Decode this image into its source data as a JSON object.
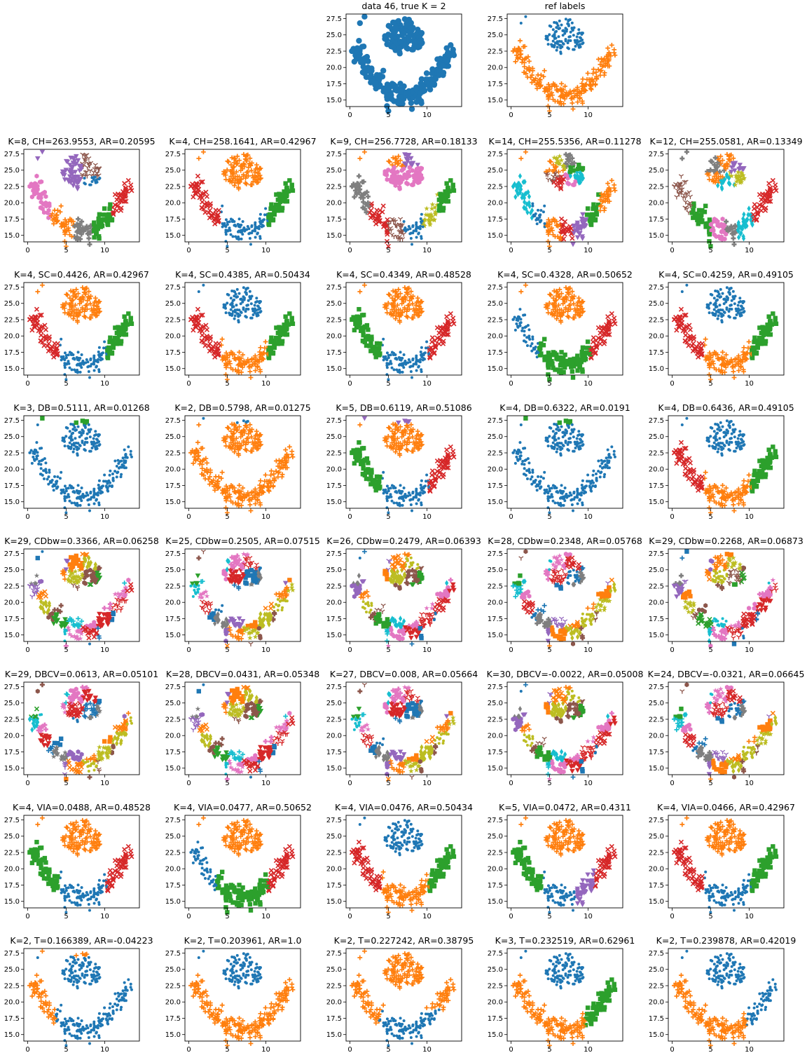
{
  "figure": {
    "rows": 8,
    "cols": 5
  },
  "palette": [
    "#1f77b4",
    "#ff7f0e",
    "#2ca02c",
    "#d62728",
    "#9467bd",
    "#8c564b",
    "#e377c2",
    "#7f7f7f",
    "#bcbd22",
    "#17becf"
  ],
  "markers": [
    "dot",
    "plus",
    "square",
    "x",
    "tri-down",
    "tri-narrow",
    "hexagon",
    "cross",
    "star",
    "diamond"
  ],
  "axes": {
    "xlim": [
      -0.5,
      14.5
    ],
    "ylim": [
      14,
      28.2
    ],
    "xticks": [
      "0",
      "5",
      "10"
    ],
    "xtick_values": [
      0,
      5,
      10
    ],
    "yticks": [
      "15.0",
      "17.5",
      "20.0",
      "22.5",
      "25.0",
      "27.5"
    ],
    "ytick_values": [
      15,
      17.5,
      20,
      22.5,
      25,
      27.5
    ]
  },
  "chart_data": [
    {
      "type": "scatter",
      "title": "data 46, true K = 2",
      "pos": [
        0,
        2
      ],
      "coloring": "single"
    },
    {
      "type": "scatter",
      "title": "ref labels",
      "pos": [
        0,
        3
      ],
      "coloring": "ref"
    },
    {
      "type": "scatter",
      "title": "K=8, CH=263.9553, AR=0.20595",
      "pos": [
        1,
        0
      ],
      "coloring": "k8"
    },
    {
      "type": "scatter",
      "title": "K=4, CH=258.1641, AR=0.42967",
      "pos": [
        1,
        1
      ],
      "coloring": "k4a"
    },
    {
      "type": "scatter",
      "title": "K=9, CH=256.7728, AR=0.18133",
      "pos": [
        1,
        2
      ],
      "coloring": "k9"
    },
    {
      "type": "scatter",
      "title": "K=14, CH=255.5356, AR=0.11278",
      "pos": [
        1,
        3
      ],
      "coloring": "k14"
    },
    {
      "type": "scatter",
      "title": "K=12, CH=255.0581, AR=0.13349",
      "pos": [
        1,
        4
      ],
      "coloring": "k12"
    },
    {
      "type": "scatter",
      "title": "K=4, SC=0.4426, AR=0.42967",
      "pos": [
        2,
        0
      ],
      "coloring": "k4a"
    },
    {
      "type": "scatter",
      "title": "K=4, SC=0.4385, AR=0.50434",
      "pos": [
        2,
        1
      ],
      "coloring": "k4b"
    },
    {
      "type": "scatter",
      "title": "K=4, SC=0.4349, AR=0.48528",
      "pos": [
        2,
        2
      ],
      "coloring": "k4c"
    },
    {
      "type": "scatter",
      "title": "K=4, SC=0.4328, AR=0.50652",
      "pos": [
        2,
        3
      ],
      "coloring": "k4d"
    },
    {
      "type": "scatter",
      "title": "K=4, SC=0.4259, AR=0.49105",
      "pos": [
        2,
        4
      ],
      "coloring": "k4e"
    },
    {
      "type": "scatter",
      "title": "K=3, DB=0.5111, AR=0.01268",
      "pos": [
        3,
        0
      ],
      "coloring": "db3"
    },
    {
      "type": "scatter",
      "title": "K=2, DB=0.5798, AR=0.01275",
      "pos": [
        3,
        1
      ],
      "coloring": "db2"
    },
    {
      "type": "scatter",
      "title": "K=5, DB=0.6119, AR=0.51086",
      "pos": [
        3,
        2
      ],
      "coloring": "db5"
    },
    {
      "type": "scatter",
      "title": "K=4, DB=0.6322, AR=0.0191",
      "pos": [
        3,
        3
      ],
      "coloring": "db4"
    },
    {
      "type": "scatter",
      "title": "K=4, DB=0.6436, AR=0.49105",
      "pos": [
        3,
        4
      ],
      "coloring": "k4e"
    },
    {
      "type": "scatter",
      "title": "K=29, CDbw=0.3366, AR=0.06258",
      "pos": [
        4,
        0
      ],
      "coloring": "many1"
    },
    {
      "type": "scatter",
      "title": "K=25, CDbw=0.2505, AR=0.07515",
      "pos": [
        4,
        1
      ],
      "coloring": "many2"
    },
    {
      "type": "scatter",
      "title": "K=26, CDbw=0.2479, AR=0.06393",
      "pos": [
        4,
        2
      ],
      "coloring": "many3"
    },
    {
      "type": "scatter",
      "title": "K=28, CDbw=0.2348, AR=0.05768",
      "pos": [
        4,
        3
      ],
      "coloring": "many4"
    },
    {
      "type": "scatter",
      "title": "K=29, CDbw=0.2268, AR=0.06873",
      "pos": [
        4,
        4
      ],
      "coloring": "many5"
    },
    {
      "type": "scatter",
      "title": "K=29, DBCV=0.0613, AR=0.05101",
      "pos": [
        5,
        0
      ],
      "coloring": "many6"
    },
    {
      "type": "scatter",
      "title": "K=28, DBCV=0.0431, AR=0.05348",
      "pos": [
        5,
        1
      ],
      "coloring": "many7"
    },
    {
      "type": "scatter",
      "title": "K=27, DBCV=0.008, AR=0.05664",
      "pos": [
        5,
        2
      ],
      "coloring": "many8"
    },
    {
      "type": "scatter",
      "title": "K=30, DBCV=-0.0022, AR=0.05008",
      "pos": [
        5,
        3
      ],
      "coloring": "many9"
    },
    {
      "type": "scatter",
      "title": "K=24, DBCV=-0.0321, AR=0.06645",
      "pos": [
        5,
        4
      ],
      "coloring": "many10"
    },
    {
      "type": "scatter",
      "title": "K=4, VIA=0.0488, AR=0.48528",
      "pos": [
        6,
        0
      ],
      "coloring": "via1"
    },
    {
      "type": "scatter",
      "title": "K=4, VIA=0.0477, AR=0.50652",
      "pos": [
        6,
        1
      ],
      "coloring": "k4d"
    },
    {
      "type": "scatter",
      "title": "K=4, VIA=0.0476, AR=0.50434",
      "pos": [
        6,
        2
      ],
      "coloring": "via3"
    },
    {
      "type": "scatter",
      "title": "K=5, VIA=0.0472, AR=0.4311",
      "pos": [
        6,
        3
      ],
      "coloring": "via4"
    },
    {
      "type": "scatter",
      "title": "K=4, VIA=0.0466, AR=0.42967",
      "pos": [
        6,
        4
      ],
      "coloring": "via5"
    },
    {
      "type": "scatter",
      "title": "K=2, T=0.166389, AR=-0.04223",
      "pos": [
        7,
        0
      ],
      "coloring": "t1"
    },
    {
      "type": "scatter",
      "title": "K=2, T=0.203961, AR=1.0",
      "pos": [
        7,
        1
      ],
      "coloring": "t2"
    },
    {
      "type": "scatter",
      "title": "K=2, T=0.227242, AR=0.38795",
      "pos": [
        7,
        2
      ],
      "coloring": "t3"
    },
    {
      "type": "scatter",
      "title": "K=3, T=0.232519, AR=0.62961",
      "pos": [
        7,
        3
      ],
      "coloring": "t4"
    },
    {
      "type": "scatter",
      "title": "K=2, T=0.239878, AR=0.42019",
      "pos": [
        7,
        4
      ],
      "coloring": "t5"
    }
  ]
}
